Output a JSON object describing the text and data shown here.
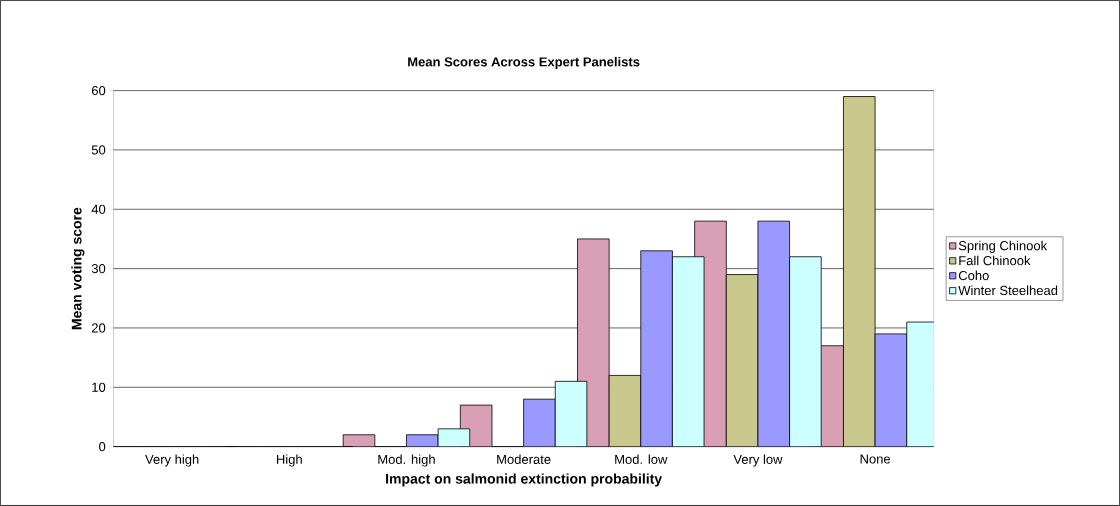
{
  "chart_data": {
    "type": "bar",
    "title": "Mean Scores Across Expert Panelists",
    "xlabel": "Impact on salmonid extinction probability",
    "ylabel": "Mean voting score",
    "categories": [
      "Very high",
      "High",
      "Mod. high",
      "Moderate",
      "Mod. low",
      "Very low",
      "None"
    ],
    "series": [
      {
        "name": "Spring Chinook",
        "color": "#d9a0b5",
        "values": [
          0,
          0,
          2,
          7,
          35,
          38,
          17
        ]
      },
      {
        "name": "Fall Chinook",
        "color": "#c8c88c",
        "values": [
          0,
          0,
          0,
          0,
          12,
          29,
          59
        ]
      },
      {
        "name": "Coho",
        "color": "#9999ff",
        "values": [
          0,
          0,
          2,
          8,
          33,
          38,
          19
        ]
      },
      {
        "name": "Winter Steelhead",
        "color": "#ccffff",
        "values": [
          0,
          0,
          3,
          11,
          32,
          32,
          21
        ]
      }
    ],
    "ylim": [
      0,
      60
    ],
    "yticks": [
      0,
      10,
      20,
      30,
      40,
      50,
      60
    ],
    "grid": "y",
    "legend": "right"
  }
}
